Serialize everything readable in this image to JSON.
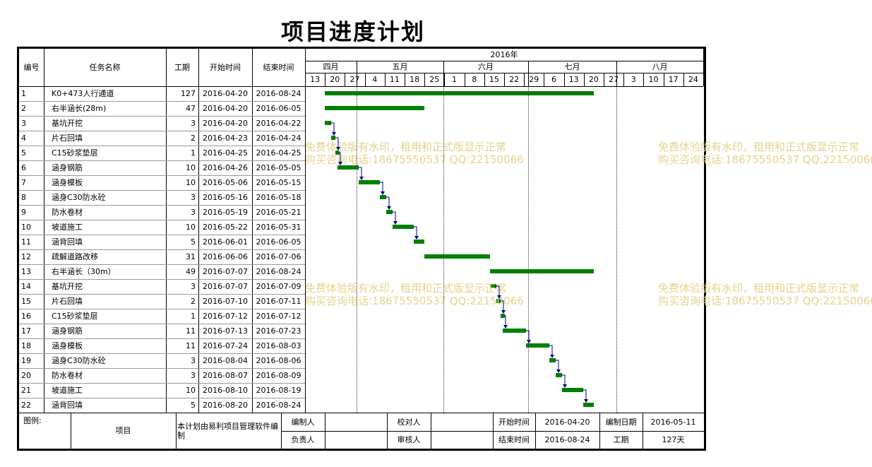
{
  "title": "项目进度计划",
  "headers": {
    "id": "编号",
    "name": "任务名称",
    "duration": "工期",
    "start": "开始时间",
    "end": "结束时间"
  },
  "timeline": {
    "year": "2016年",
    "months": [
      "四月",
      "五月",
      "六月",
      "七月",
      "八月"
    ],
    "days": [
      "13",
      "20",
      "27",
      "4",
      "11",
      "18",
      "25",
      "1",
      "8",
      "15",
      "22",
      "29",
      "6",
      "13",
      "20",
      "27",
      "3",
      "10",
      "17",
      "24"
    ],
    "chart_start": "2016-04-13",
    "chart_end": "2016-08-31"
  },
  "tasks": [
    {
      "id": "1",
      "name": "K0+473人行通道",
      "duration": "127",
      "start": "2016-04-20",
      "end": "2016-08-24"
    },
    {
      "id": "2",
      "name": "右半涵长(28m)",
      "duration": "47",
      "start": "2016-04-20",
      "end": "2016-06-05"
    },
    {
      "id": "3",
      "name": "基坑开挖",
      "duration": "3",
      "start": "2016-04-20",
      "end": "2016-04-22"
    },
    {
      "id": "4",
      "name": "片石回填",
      "duration": "2",
      "start": "2016-04-23",
      "end": "2016-04-24"
    },
    {
      "id": "5",
      "name": "C15砂浆垫层",
      "duration": "1",
      "start": "2016-04-25",
      "end": "2016-04-25"
    },
    {
      "id": "6",
      "name": "涵身钢筋",
      "duration": "10",
      "start": "2016-04-26",
      "end": "2016-05-05"
    },
    {
      "id": "7",
      "name": "涵身模板",
      "duration": "10",
      "start": "2016-05-06",
      "end": "2016-05-15"
    },
    {
      "id": "8",
      "name": "涵身C30防水砼",
      "duration": "3",
      "start": "2016-05-16",
      "end": "2016-05-18"
    },
    {
      "id": "9",
      "name": "防水卷材",
      "duration": "3",
      "start": "2016-05-19",
      "end": "2016-05-21"
    },
    {
      "id": "10",
      "name": "坡道施工",
      "duration": "10",
      "start": "2016-05-22",
      "end": "2016-05-31"
    },
    {
      "id": "11",
      "name": "涵背回填",
      "duration": "5",
      "start": "2016-06-01",
      "end": "2016-06-05"
    },
    {
      "id": "12",
      "name": "疏解道路改移",
      "duration": "31",
      "start": "2016-06-06",
      "end": "2016-07-06"
    },
    {
      "id": "13",
      "name": "右半涵长（30m）",
      "duration": "49",
      "start": "2016-07-07",
      "end": "2016-08-24"
    },
    {
      "id": "14",
      "name": "基坑开挖",
      "duration": "3",
      "start": "2016-07-07",
      "end": "2016-07-09"
    },
    {
      "id": "15",
      "name": "片石回填",
      "duration": "2",
      "start": "2016-07-10",
      "end": "2016-07-11"
    },
    {
      "id": "16",
      "name": "C15砂浆垫层",
      "duration": "1",
      "start": "2016-07-12",
      "end": "2016-07-12"
    },
    {
      "id": "17",
      "name": "涵身钢筋",
      "duration": "11",
      "start": "2016-07-13",
      "end": "2016-07-23"
    },
    {
      "id": "18",
      "name": "涵身模板",
      "duration": "11",
      "start": "2016-07-24",
      "end": "2016-08-03"
    },
    {
      "id": "19",
      "name": "涵身C30防水砼",
      "duration": "3",
      "start": "2016-08-04",
      "end": "2016-08-06"
    },
    {
      "id": "20",
      "name": "防水卷材",
      "duration": "3",
      "start": "2016-08-07",
      "end": "2016-08-09"
    },
    {
      "id": "21",
      "name": "坡道施工",
      "duration": "10",
      "start": "2016-08-10",
      "end": "2016-08-19"
    },
    {
      "id": "22",
      "name": "涵背回填",
      "duration": "5",
      "start": "2016-08-20",
      "end": "2016-08-24"
    }
  ],
  "footer": {
    "legend_label": "图例:",
    "item_label": "项目",
    "note": "本计划由易利项目管理软件编制",
    "compiler_label": "编制人",
    "checker_label": "校对人",
    "start_label": "开始时间",
    "start_value": "2016-04-20",
    "compile_date_label": "编制日期",
    "compile_date_value": "2016-05-11",
    "owner_label": "负责人",
    "reviewer_label": "审核人",
    "end_label": "结束时间",
    "end_value": "2016-08-24",
    "duration_label": "工期",
    "duration_value": "127天"
  },
  "watermark": {
    "line1": "免费体验版有水印，租用和正式版显示正常",
    "line2": "购买咨询电话:18675550537 QQ:22150066"
  },
  "colors": {
    "bar": "#008000",
    "arrow": "#00008b",
    "watermark": "#e4d38c"
  }
}
